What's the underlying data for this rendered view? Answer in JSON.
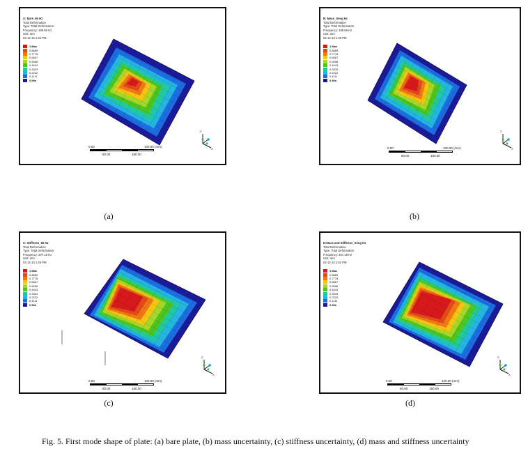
{
  "figure": {
    "caption": "Fig.  5. First mode shape of plate: (a) bare plate, (b) mass uncertainty, (c) stiffness uncertainty, (d) mass and stiffness uncertainty"
  },
  "legend": {
    "colors": [
      "#d7191c",
      "#e34a1a",
      "#ef7a14",
      "#f6c411",
      "#a6d629",
      "#4fc61f",
      "#22c99e",
      "#24b6e0",
      "#1c6fe0",
      "#1b1b9a"
    ],
    "labels": [
      "1 Max",
      "0.8889",
      "0.7778",
      "0.6667",
      "0.5556",
      "0.4444",
      "0.3333",
      "0.2222",
      "0.1111",
      "0 Min"
    ]
  },
  "panels": [
    {
      "letter": "(a)",
      "info": [
        "A: Bare_66 Hz",
        "Total Deformation",
        "Type: Total Deformation",
        "Frequency: 189.89 Hz",
        "Unit: mm",
        "02-12-13 1:32 PM"
      ],
      "scale": {
        "t0": "0.00",
        "t1": "100.00 (mm)",
        "t2": "50.00",
        "t3": "150.00"
      }
    },
    {
      "letter": "(b)",
      "info": [
        "B: Mass_Seng Hz",
        "Total Deformation",
        "Type: Total Deformation",
        "Frequency: 189.89 Hz",
        "Unit: mm",
        "02-12-13 1:36 PM"
      ],
      "scale": {
        "t0": "0.00",
        "t1": "100.00 (mm)",
        "t2": "50.00",
        "t3": "150.00"
      }
    },
    {
      "letter": "(c)",
      "info": [
        "C: Stiffness_66 Hz",
        "Total Deformation",
        "Type: Total Deformation",
        "Frequency: 207.18 Hz",
        "Unit: mm",
        "02-12-13 1:46 PM"
      ],
      "scale": {
        "t0": "0.00",
        "t1": "100.00 (mm)",
        "t2": "50.00",
        "t3": "150.00"
      }
    },
    {
      "letter": "(d)",
      "info": [
        "D:Mass and Stiffness_Seng Hz",
        "Total Deformation",
        "Type: Total Deformation",
        "Frequency: 207.18 Hz",
        "Unit: mm",
        "02-12-13 1:52 PM"
      ],
      "scale": {
        "t0": "0.00",
        "t1": "100.00 (mm)",
        "t2": "50.00",
        "t3": "150.00"
      }
    }
  ]
}
